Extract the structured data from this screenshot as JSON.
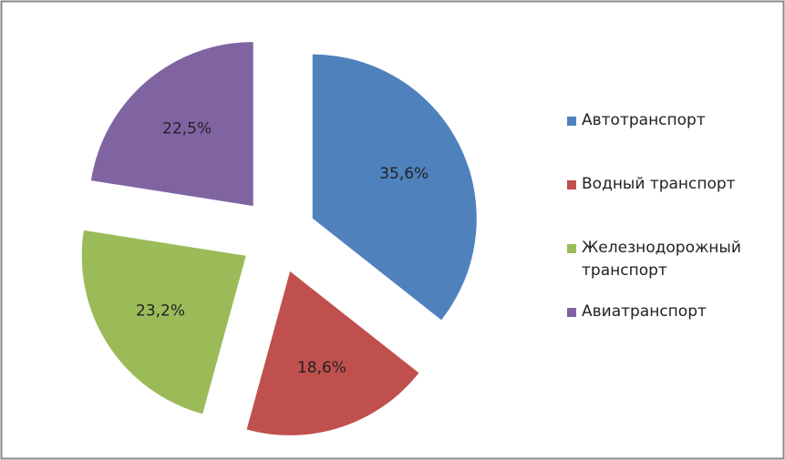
{
  "chart_data": {
    "type": "pie",
    "categories": [
      "Автотранспорт",
      "Водный транспорт",
      "Железнодорожный транспорт",
      "Авиатранспорт"
    ],
    "values": [
      35.6,
      18.6,
      23.2,
      22.5
    ],
    "value_labels": [
      "35,6%",
      "18,6%",
      "23,2%",
      "22,5%"
    ],
    "colors": [
      "#4f81bd",
      "#c0504d",
      "#9bbb59",
      "#8064a2"
    ],
    "legend": "right"
  }
}
